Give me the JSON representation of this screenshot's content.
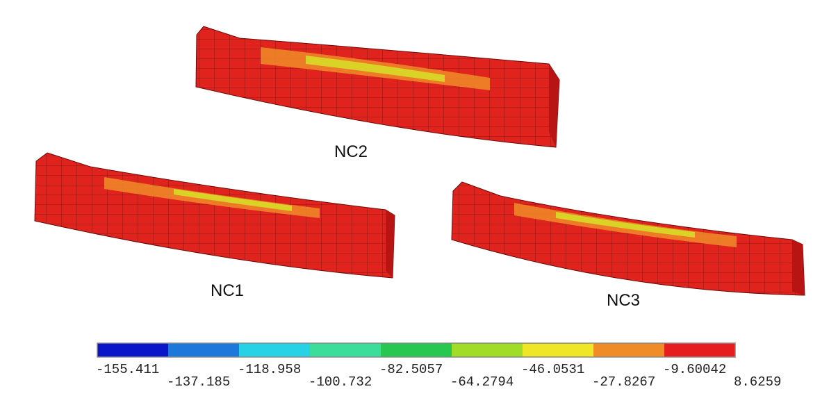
{
  "beams": [
    {
      "label": "NC2"
    },
    {
      "label": "NC1"
    },
    {
      "label": "NC3"
    }
  ],
  "legend": {
    "colors": [
      "#0a14c8",
      "#1e78dc",
      "#28d2e6",
      "#3cdc9b",
      "#28c850",
      "#a0dc28",
      "#f0e628",
      "#f08c28",
      "#e61e1e"
    ],
    "labels": [
      "-155.411",
      "-137.185",
      "-118.958",
      "-100.732",
      "-82.5057",
      "-64.2794",
      "-46.0531",
      "-27.8267",
      "-9.60042",
      "8.6259"
    ]
  }
}
